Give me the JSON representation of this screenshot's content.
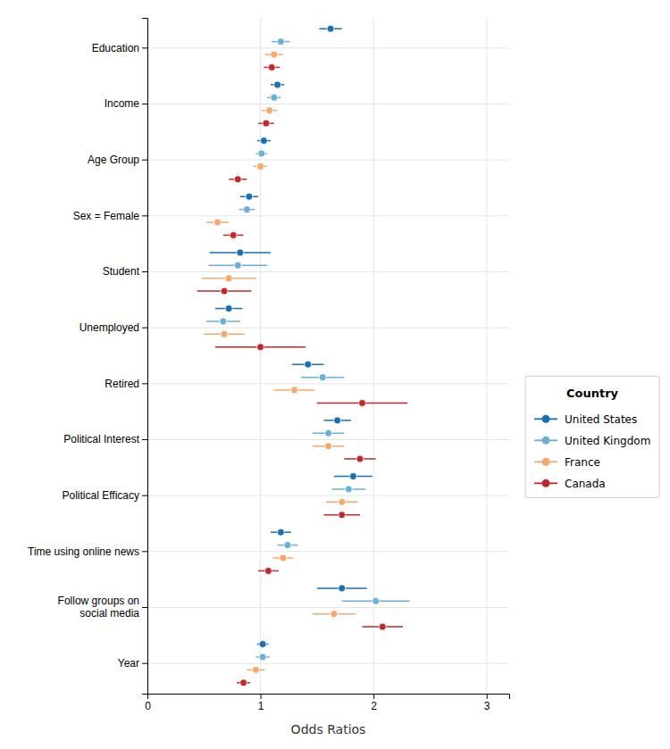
{
  "chart_data": {
    "type": "dot",
    "orientation": "horizontal",
    "categories": [
      "Education",
      "Income",
      "Age Group",
      "Sex = Female",
      "Student",
      "Unemployed",
      "Retired",
      "Political Interest",
      "Political Efficacy",
      "Time using online news",
      "Follow groups on\nsocial media",
      "Year"
    ],
    "series": [
      {
        "name": "United States",
        "color": "#1a6faf",
        "values": [
          1.62,
          1.15,
          1.03,
          0.9,
          0.82,
          0.72,
          1.42,
          1.68,
          1.82,
          1.18,
          1.72,
          1.02
        ],
        "ci_low": [
          1.52,
          1.09,
          0.97,
          0.82,
          0.55,
          0.6,
          1.28,
          1.56,
          1.65,
          1.09,
          1.5,
          0.97
        ],
        "ci_high": [
          1.72,
          1.21,
          1.09,
          0.98,
          1.09,
          0.84,
          1.56,
          1.8,
          1.99,
          1.27,
          1.94,
          1.07
        ]
      },
      {
        "name": "United Kingdom",
        "color": "#6aafd6",
        "values": [
          1.18,
          1.12,
          1.01,
          0.88,
          0.8,
          0.67,
          1.55,
          1.6,
          1.78,
          1.24,
          2.02,
          1.02
        ],
        "ci_low": [
          1.1,
          1.06,
          0.96,
          0.81,
          0.54,
          0.52,
          1.36,
          1.46,
          1.63,
          1.15,
          1.72,
          0.96
        ],
        "ci_high": [
          1.26,
          1.18,
          1.06,
          0.95,
          1.06,
          0.82,
          1.74,
          1.74,
          1.93,
          1.33,
          2.32,
          1.08
        ]
      },
      {
        "name": "France",
        "color": "#f5a86e",
        "values": [
          1.12,
          1.08,
          1.0,
          0.62,
          0.72,
          0.68,
          1.3,
          1.6,
          1.72,
          1.2,
          1.65,
          0.96
        ],
        "ci_low": [
          1.04,
          1.01,
          0.94,
          0.52,
          0.48,
          0.5,
          1.12,
          1.46,
          1.58,
          1.11,
          1.46,
          0.88
        ],
        "ci_high": [
          1.2,
          1.15,
          1.06,
          0.72,
          0.96,
          0.86,
          1.48,
          1.74,
          1.86,
          1.29,
          1.84,
          1.04
        ]
      },
      {
        "name": "Canada",
        "color": "#c0282c",
        "values": [
          1.1,
          1.05,
          0.8,
          0.76,
          0.68,
          1.0,
          1.9,
          1.88,
          1.72,
          1.07,
          2.08,
          0.85
        ],
        "ci_low": [
          1.03,
          0.98,
          0.72,
          0.67,
          0.44,
          0.6,
          1.5,
          1.74,
          1.56,
          0.98,
          1.9,
          0.79
        ],
        "ci_high": [
          1.17,
          1.12,
          0.88,
          0.85,
          0.92,
          1.4,
          2.3,
          2.02,
          1.88,
          1.16,
          2.26,
          0.91
        ]
      }
    ],
    "x_label": "Odds Ratios",
    "xlim": [
      0,
      3.2
    ],
    "xticks": [
      0,
      1,
      2,
      3
    ],
    "legend_title": "Country",
    "legend": "right",
    "grid": true
  }
}
